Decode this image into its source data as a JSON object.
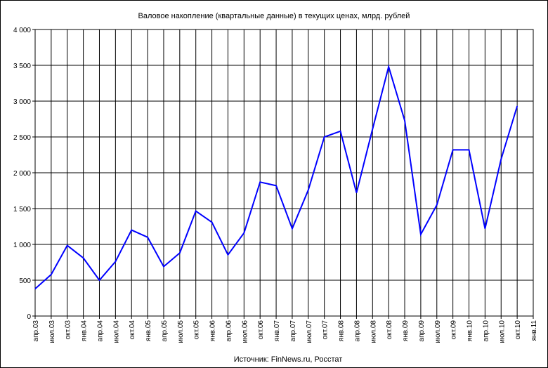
{
  "chart_data": {
    "type": "line",
    "title": "Валовое накопление (квартальные данные) в текущих ценах, млрд. рублей",
    "source": "Источник: FinNews.ru, Росстат",
    "xlabel": "",
    "ylabel": "",
    "ylim": [
      0,
      4000
    ],
    "ytick_values": [
      0,
      500,
      1000,
      1500,
      2000,
      2500,
      3000,
      3500,
      4000
    ],
    "ytick_labels": [
      "0",
      "500",
      "1 000",
      "1 500",
      "2 000",
      "2 500",
      "3 000",
      "3 500",
      "4 000"
    ],
    "grid": true,
    "categories": [
      "апр.03",
      "июл.03",
      "окт.03",
      "янв.04",
      "апр.04",
      "июл.04",
      "окт.04",
      "янв.05",
      "апр.05",
      "июл.05",
      "окт.05",
      "янв.06",
      "апр.06",
      "июл.06",
      "окт.06",
      "янв.07",
      "апр.07",
      "июл.07",
      "окт.07",
      "янв.08",
      "апр.08",
      "июл.08",
      "окт.08",
      "янв.09",
      "апр.09",
      "июл.09",
      "окт.09",
      "янв.10",
      "апр.10",
      "июл.10",
      "окт.10",
      "янв.11"
    ],
    "series": [
      {
        "color": "#0000ff",
        "values": [
          380,
          580,
          985,
          810,
          500,
          760,
          1200,
          1100,
          690,
          880,
          1465,
          1310,
          855,
          1160,
          1870,
          1820,
          1220,
          1760,
          2500,
          2580,
          1720,
          2610,
          3480,
          2730,
          1140,
          1550,
          2320,
          2320,
          1220,
          2190,
          2930,
          null
        ]
      }
    ]
  }
}
